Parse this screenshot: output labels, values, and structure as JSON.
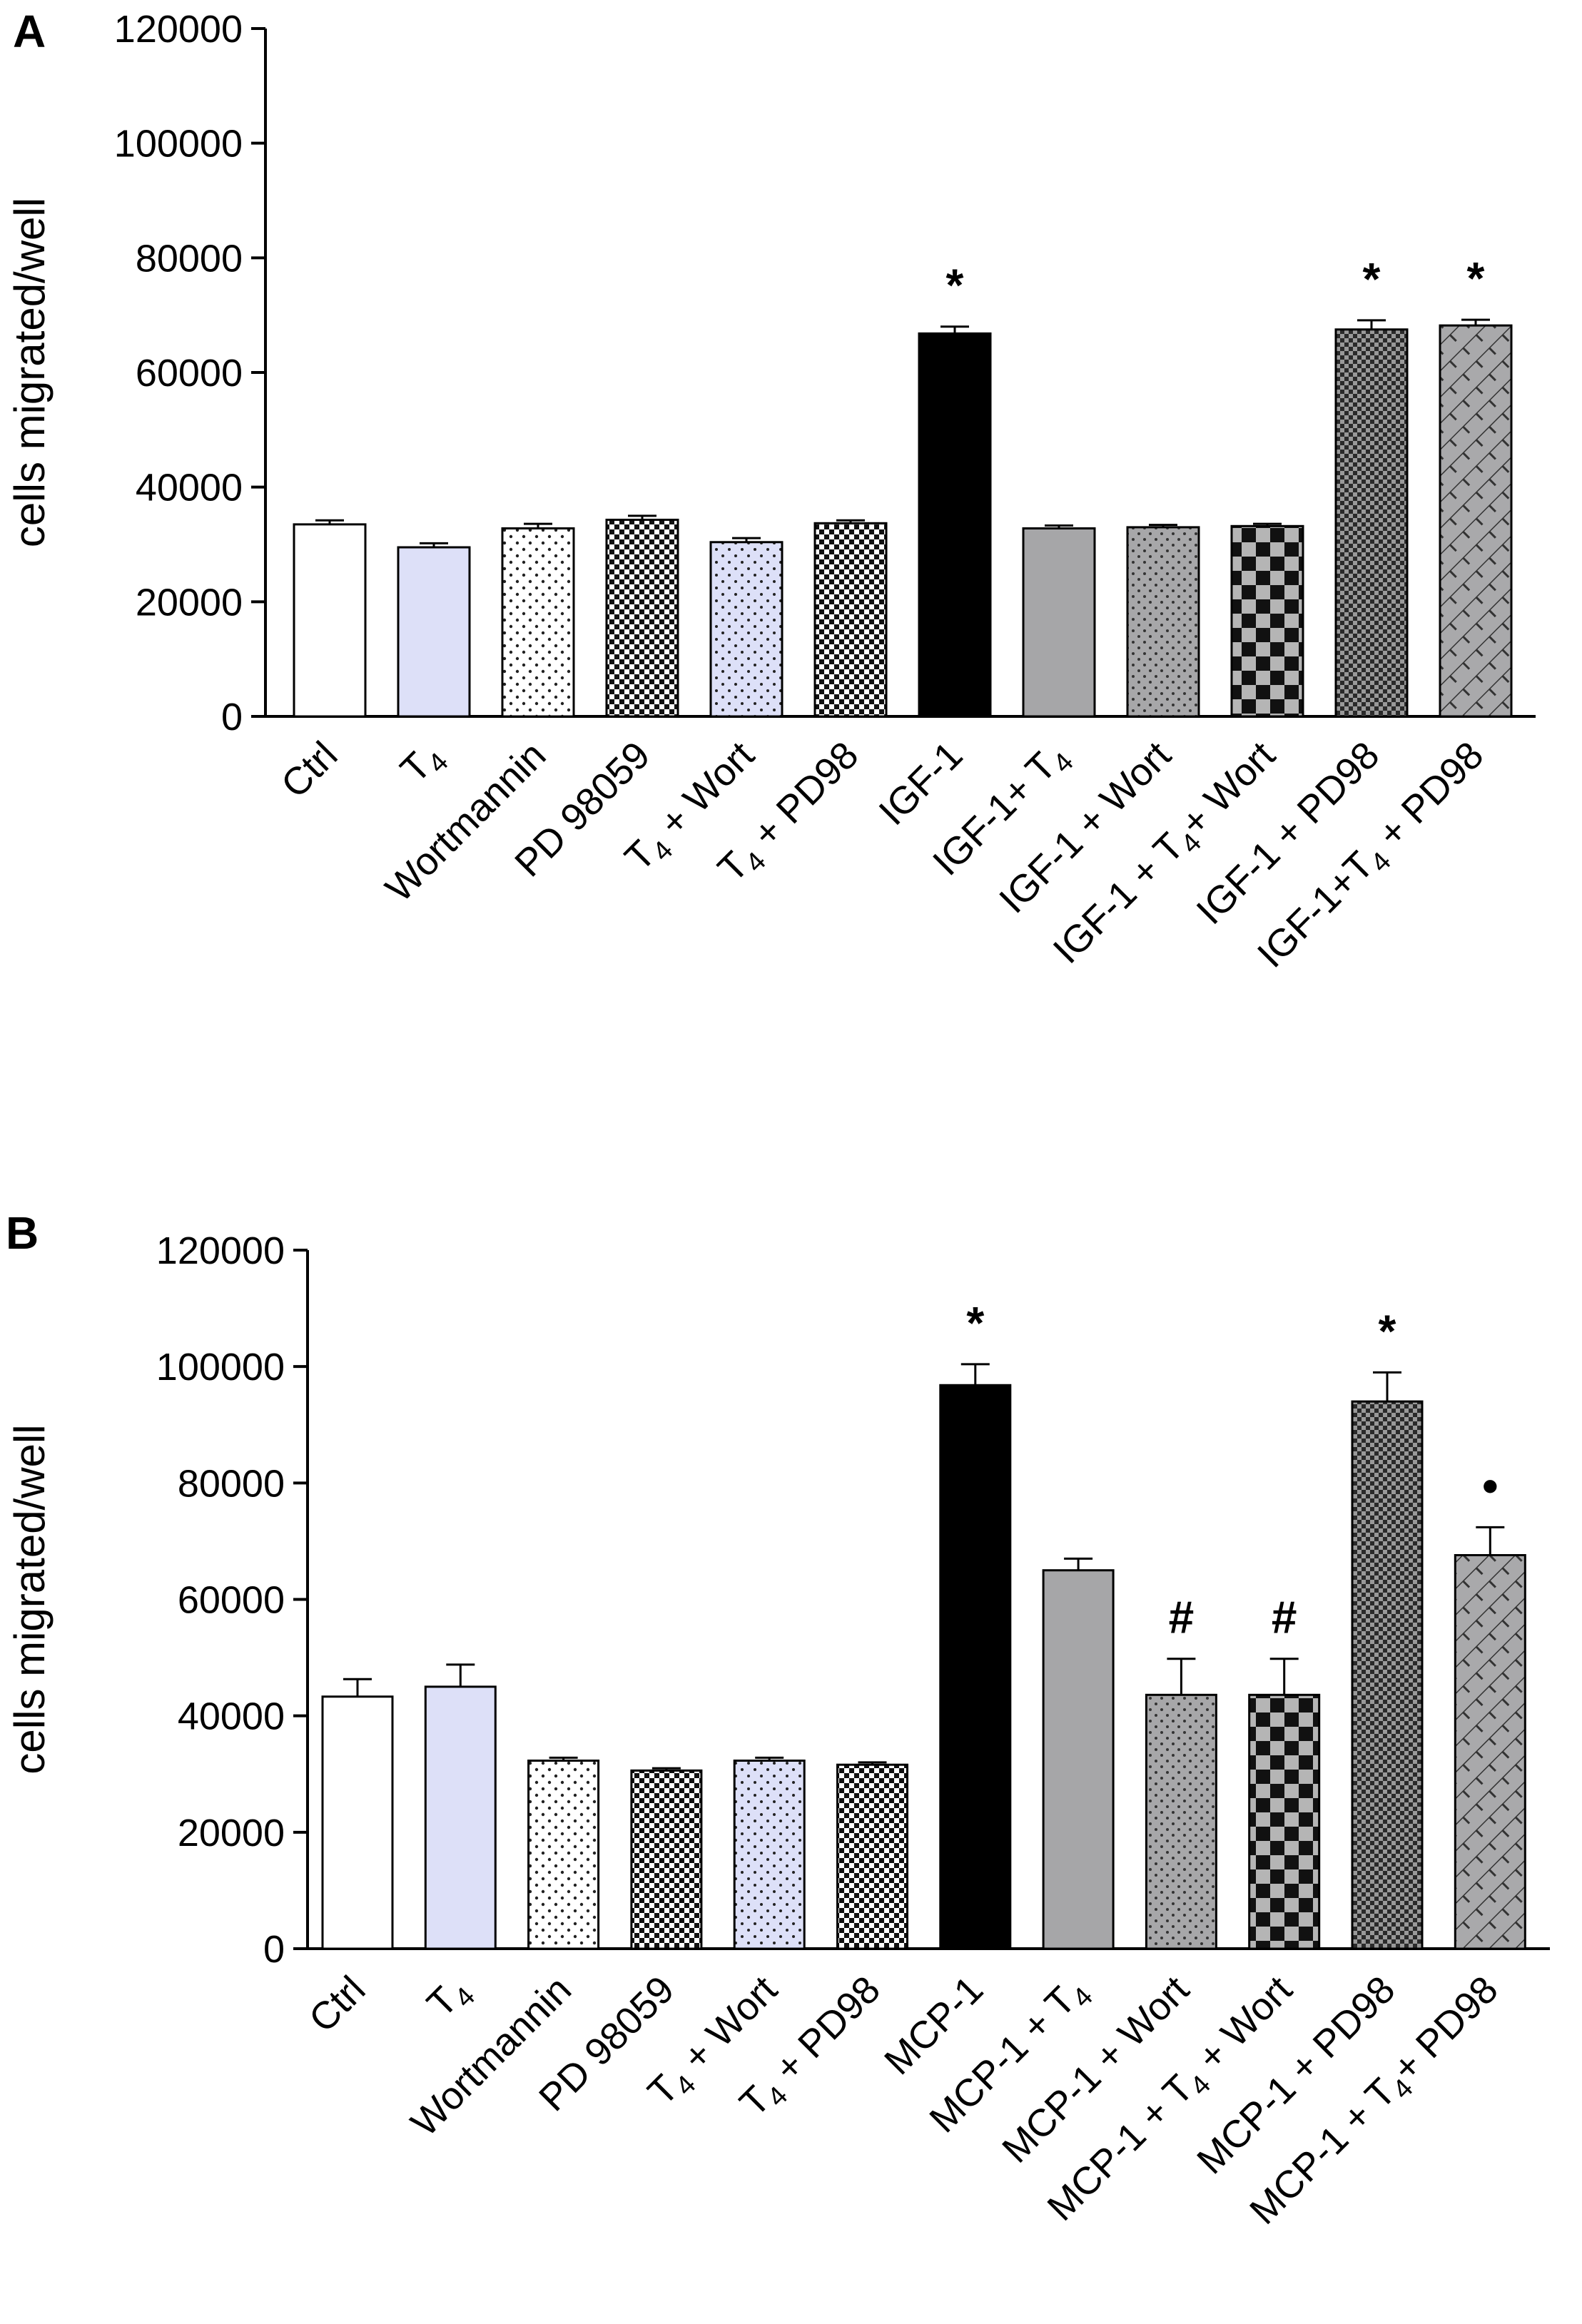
{
  "chart_data": [
    {
      "type": "bar",
      "panel_label": "A",
      "title": "",
      "xlabel": "",
      "ylabel": "cells migrated/well",
      "ylim": [
        0,
        120000
      ],
      "yticks": [
        0,
        20000,
        40000,
        60000,
        80000,
        100000,
        120000
      ],
      "grid": false,
      "categories": [
        {
          "label": "Ctrl",
          "sub": ""
        },
        {
          "label": "T",
          "sub": "4"
        },
        {
          "label": "Wortmannin",
          "sub": ""
        },
        {
          "label": "PD 98059",
          "sub": ""
        },
        {
          "label": "T",
          "sub": "4",
          "tail": " + Wort"
        },
        {
          "label": "T",
          "sub": "4",
          "tail": " + PD98"
        },
        {
          "label": "IGF-1",
          "sub": ""
        },
        {
          "label": "IGF-1+ T",
          "sub": "4"
        },
        {
          "label": "IGF-1 + Wort",
          "sub": ""
        },
        {
          "label": "IGF-1 + T",
          "sub": "4",
          "tail": "+ Wort"
        },
        {
          "label": "IGF-1 + PD98",
          "sub": ""
        },
        {
          "label": "IGF-1+T",
          "sub": "4",
          "tail": " + PD98"
        }
      ],
      "values": [
        33500,
        29500,
        32800,
        34300,
        30400,
        33700,
        66800,
        32800,
        33000,
        33200,
        67500,
        68200
      ],
      "errors": [
        700,
        700,
        800,
        700,
        700,
        500,
        1200,
        500,
        400,
        400,
        1600,
        1000
      ],
      "annotations": [
        "",
        "",
        "",
        "",
        "",
        "",
        "*",
        "",
        "",
        "",
        "*",
        "*"
      ],
      "fills": [
        "white",
        "lavender",
        "dots",
        "checker-fine",
        "lavender-dots",
        "checker-fine",
        "black",
        "gray",
        "gray-dots",
        "checker-coarse",
        "checker-gray",
        "hatch"
      ]
    },
    {
      "type": "bar",
      "panel_label": "B",
      "title": "",
      "xlabel": "",
      "ylabel": "cells migrated/well",
      "ylim": [
        0,
        120000
      ],
      "yticks": [
        0,
        20000,
        40000,
        60000,
        80000,
        100000,
        120000
      ],
      "grid": false,
      "categories": [
        {
          "label": "Ctrl",
          "sub": ""
        },
        {
          "label": "T",
          "sub": "4"
        },
        {
          "label": "Wortmannin",
          "sub": ""
        },
        {
          "label": "PD 98059",
          "sub": ""
        },
        {
          "label": "T",
          "sub": "4",
          "tail": " + Wort"
        },
        {
          "label": "T",
          "sub": "4",
          "tail": " + PD98"
        },
        {
          "label": "MCP-1",
          "sub": ""
        },
        {
          "label": "MCP-1 + T",
          "sub": "4"
        },
        {
          "label": "MCP-1 + Wort",
          "sub": ""
        },
        {
          "label": "MCP-1 + T",
          "sub": "4",
          "tail": " + Wort"
        },
        {
          "label": "MCP-1 + PD98",
          "sub": ""
        },
        {
          "label": "MCP-1 + T",
          "sub": "4",
          "tail": "+ PD98"
        }
      ],
      "values": [
        43300,
        45000,
        32300,
        30600,
        32300,
        31600,
        96800,
        65000,
        43600,
        43600,
        94000,
        67600
      ],
      "errors": [
        3000,
        3800,
        500,
        400,
        500,
        400,
        3600,
        2000,
        6200,
        6200,
        5000,
        4800
      ],
      "annotations": [
        "",
        "",
        "",
        "",
        "",
        "",
        "*",
        "",
        "#",
        "#",
        "*",
        "•"
      ],
      "fills": [
        "white",
        "lavender",
        "dots",
        "checker-fine",
        "lavender-dots",
        "checker-fine",
        "black",
        "gray",
        "gray-dots",
        "checker-coarse",
        "checker-gray",
        "hatch"
      ]
    }
  ]
}
